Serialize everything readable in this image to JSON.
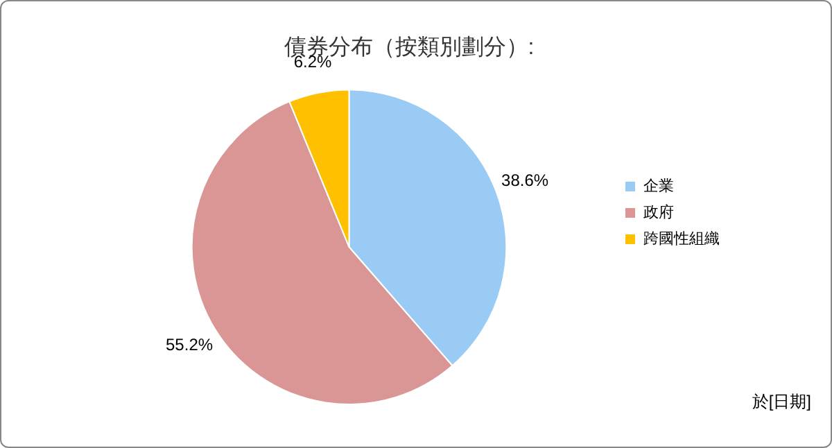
{
  "chart_data": {
    "type": "pie",
    "title": "債券分布（按類別劃分）:",
    "categories": [
      "企業",
      "政府",
      "跨國性組織"
    ],
    "values": [
      38.6,
      55.2,
      6.2
    ],
    "colors": [
      "#99cbf4",
      "#d99694",
      "#ffc000"
    ],
    "value_labels": [
      "38.6%",
      "55.2%",
      "6.2%"
    ],
    "legend": "right",
    "annotations": [
      "於[日期]"
    ]
  }
}
